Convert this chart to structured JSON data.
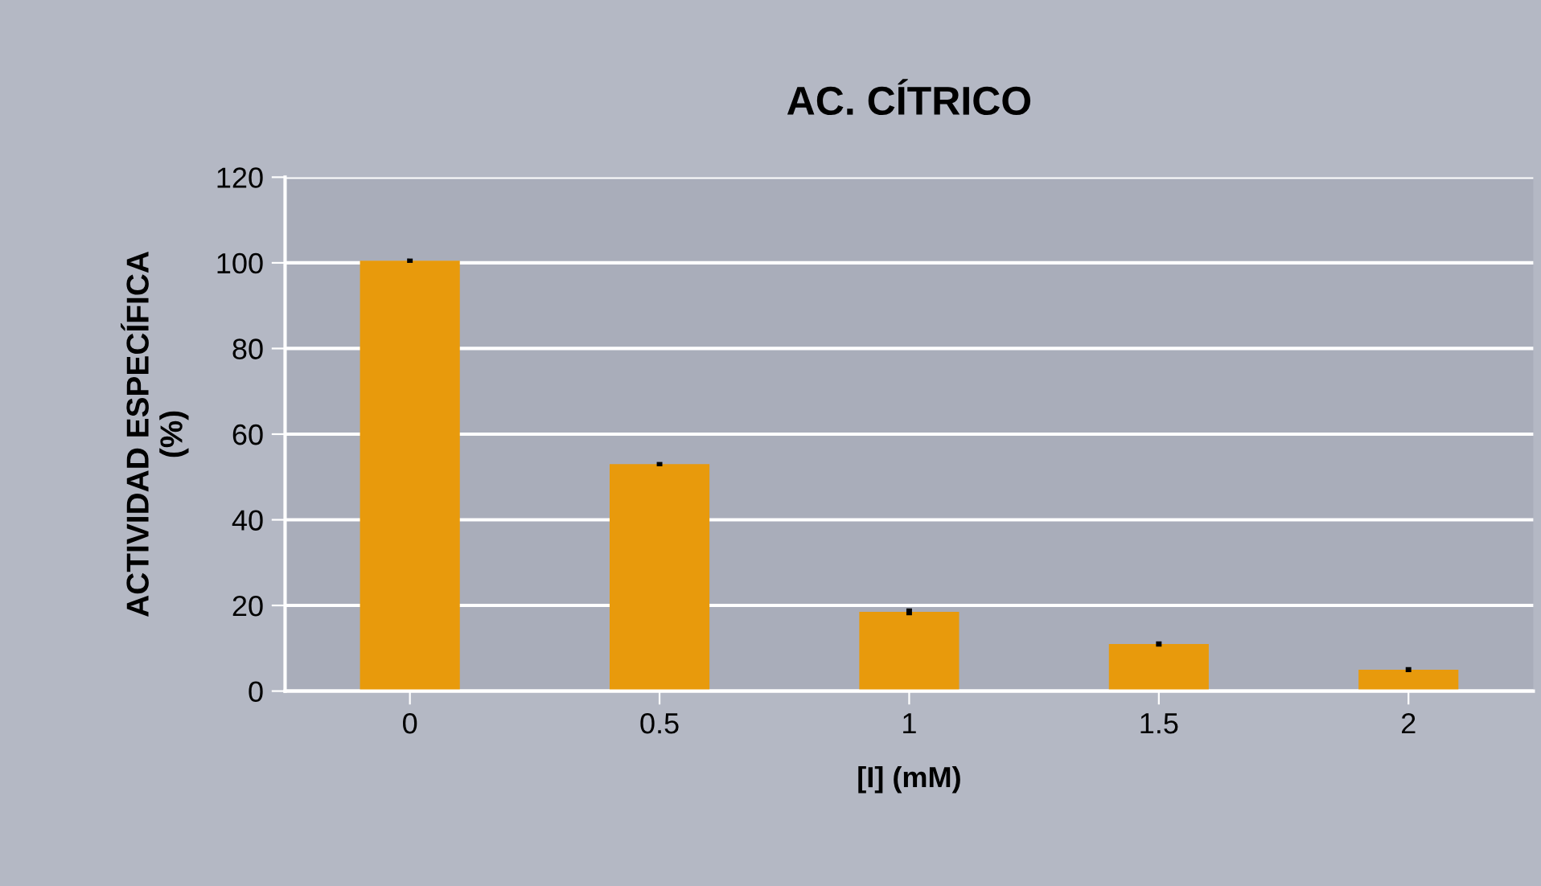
{
  "chart_data": {
    "type": "bar",
    "title": "AC. CÍTRICO",
    "xlabel": "[I] (mM)",
    "ylabel": "ACTIVIDAD ESPECÍFICA\n(%)",
    "categories": [
      "0",
      "0.5",
      "1",
      "1.5",
      "2"
    ],
    "values": [
      100.5,
      53,
      18.5,
      11,
      5
    ],
    "errors": [
      0.5,
      0.5,
      0.8,
      0.6,
      0.6
    ],
    "color": "#e89a0c",
    "ylim": [
      0,
      120
    ],
    "yticks": [
      0,
      20,
      40,
      60,
      80,
      100,
      120
    ],
    "grid": "y",
    "legend": false
  }
}
